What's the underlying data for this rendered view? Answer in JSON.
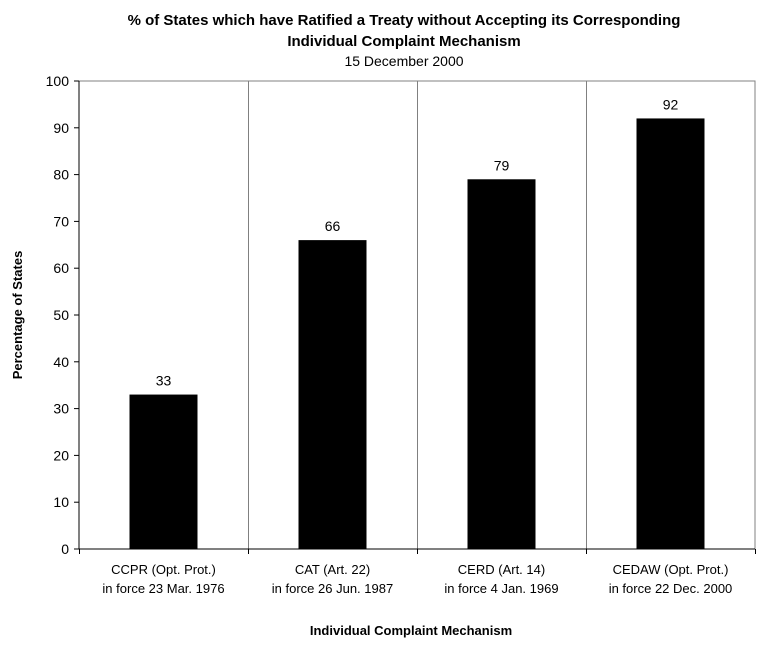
{
  "chart_data": {
    "type": "bar",
    "title": "% of States which have Ratified a Treaty without Accepting its Corresponding Individual Complaint Mechanism",
    "title_lines": [
      "% of States which have Ratified a Treaty without Accepting its Corresponding",
      "Individual Complaint Mechanism"
    ],
    "subtitle": "15 December 2000",
    "xlabel": "Individual Complaint Mechanism",
    "ylabel": "Percentage of States",
    "categories": [
      "CCPR (Opt. Prot.) in force 23 Mar. 1976",
      "CAT (Art. 22) in force 26 Jun. 1987",
      "CERD (Art. 14) in force 4 Jan. 1969",
      "CEDAW (Opt. Prot.) in force 22 Dec. 2000"
    ],
    "category_lines": [
      [
        "CCPR (Opt. Prot.)",
        "in force 23 Mar. 1976"
      ],
      [
        "CAT (Art. 22)",
        "in force 26 Jun. 1987"
      ],
      [
        "CERD (Art. 14)",
        "in force 4 Jan. 1969"
      ],
      [
        "CEDAW (Opt. Prot.)",
        "in force 22 Dec. 2000"
      ]
    ],
    "values": [
      33,
      66,
      79,
      92
    ],
    "ylim": [
      0,
      100
    ],
    "yticks": [
      0,
      10,
      20,
      30,
      40,
      50,
      60,
      70,
      80,
      90,
      100
    ],
    "grid": "vertical category separators",
    "bar_color": "#000000",
    "legend": "none"
  }
}
